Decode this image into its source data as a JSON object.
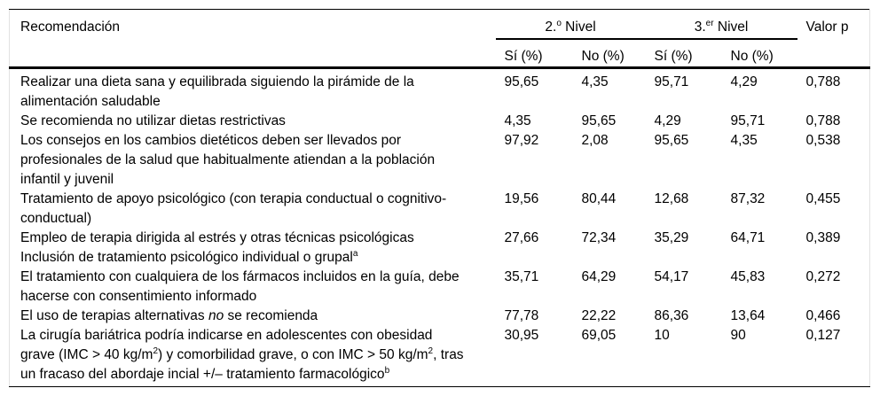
{
  "table": {
    "header": {
      "recommendation": "Recomendación",
      "nivel2_group": [
        {
          "t": "2.",
          "s": "n"
        },
        {
          "t": "o",
          "s": "sup"
        },
        {
          "t": " Nivel",
          "s": "n"
        }
      ],
      "nivel3_group": [
        {
          "t": "3.",
          "s": "n"
        },
        {
          "t": "er",
          "s": "sup"
        },
        {
          "t": " Nivel",
          "s": "n"
        }
      ],
      "valor_p": "Valor p",
      "sub": [
        "Sí (%)",
        "No (%)",
        "Sí (%)",
        "No (%)"
      ]
    },
    "rows": [
      {
        "label": [
          {
            "t": "Realizar una dieta sana y equilibrada siguiendo la pirámide de la",
            "s": "n"
          },
          {
            "s": "br"
          },
          {
            "t": "alimentación saludable",
            "s": "n"
          }
        ],
        "si2": "95,65",
        "no2": "4,35",
        "si3": "95,71",
        "no3": "4,29",
        "p": "0,788"
      },
      {
        "label": [
          {
            "t": "Se recomienda no utilizar dietas restrictivas",
            "s": "n"
          }
        ],
        "si2": "4,35",
        "no2": "95,65",
        "si3": "4,29",
        "no3": "95,71",
        "p": "0,788"
      },
      {
        "label": [
          {
            "t": "Los consejos en los cambios dietéticos deben ser llevados por",
            "s": "n"
          },
          {
            "s": "br"
          },
          {
            "t": "profesionales de la salud que habitualmente atiendan a la población",
            "s": "n"
          },
          {
            "s": "br"
          },
          {
            "t": "infantil y juvenil",
            "s": "n"
          }
        ],
        "si2": "97,92",
        "no2": "2,08",
        "si3": "95,65",
        "no3": "4,35",
        "p": "0,538"
      },
      {
        "label": [
          {
            "t": "Tratamiento de apoyo psicológico (con terapia conductual o cognitivo-",
            "s": "n"
          },
          {
            "s": "br"
          },
          {
            "t": "conductual)",
            "s": "n"
          }
        ],
        "si2": "19,56",
        "no2": "80,44",
        "si3": "12,68",
        "no3": "87,32",
        "p": "0,455"
      },
      {
        "label": [
          {
            "t": "Empleo de terapia dirigida al estrés y otras técnicas psicológicas",
            "s": "n"
          },
          {
            "s": "br"
          },
          {
            "t": "Inclusión de tratamiento psicológico individual o grupal",
            "s": "n"
          },
          {
            "t": "a",
            "s": "sup"
          }
        ],
        "si2": "27,66",
        "no2": "72,34",
        "si3": "35,29",
        "no3": "64,71",
        "p": "0,389"
      },
      {
        "label": [
          {
            "t": "El tratamiento con cualquiera de los fármacos incluidos en la guía, debe",
            "s": "n"
          },
          {
            "s": "br"
          },
          {
            "t": "hacerse con consentimiento informado",
            "s": "n"
          }
        ],
        "si2": "35,71",
        "no2": "64,29",
        "si3": "54,17",
        "no3": "45,83",
        "p": "0,272"
      },
      {
        "label": [
          {
            "t": "El uso de terapias alternativas ",
            "s": "n"
          },
          {
            "t": "no",
            "s": "i"
          },
          {
            "t": " se recomienda",
            "s": "n"
          }
        ],
        "si2": "77,78",
        "no2": "22,22",
        "si3": "86,36",
        "no3": "13,64",
        "p": "0,466"
      },
      {
        "label": [
          {
            "t": "La cirugía bariátrica podría indicarse en adolescentes con obesidad",
            "s": "n"
          },
          {
            "s": "br"
          },
          {
            "t": "grave (IMC > 40 kg/m",
            "s": "n"
          },
          {
            "t": "2",
            "s": "sup"
          },
          {
            "t": ") y comorbilidad grave, o con IMC > 50 kg/m",
            "s": "n"
          },
          {
            "t": "2",
            "s": "sup"
          },
          {
            "t": ", tras",
            "s": "n"
          },
          {
            "s": "br"
          },
          {
            "t": "un fracaso del abordaje incial +/– tratamiento farmacológico",
            "s": "n"
          },
          {
            "t": "b",
            "s": "sup"
          }
        ],
        "si2": "30,95",
        "no2": "69,05",
        "si3": "10",
        "no3": "90",
        "p": "0,127"
      }
    ]
  }
}
